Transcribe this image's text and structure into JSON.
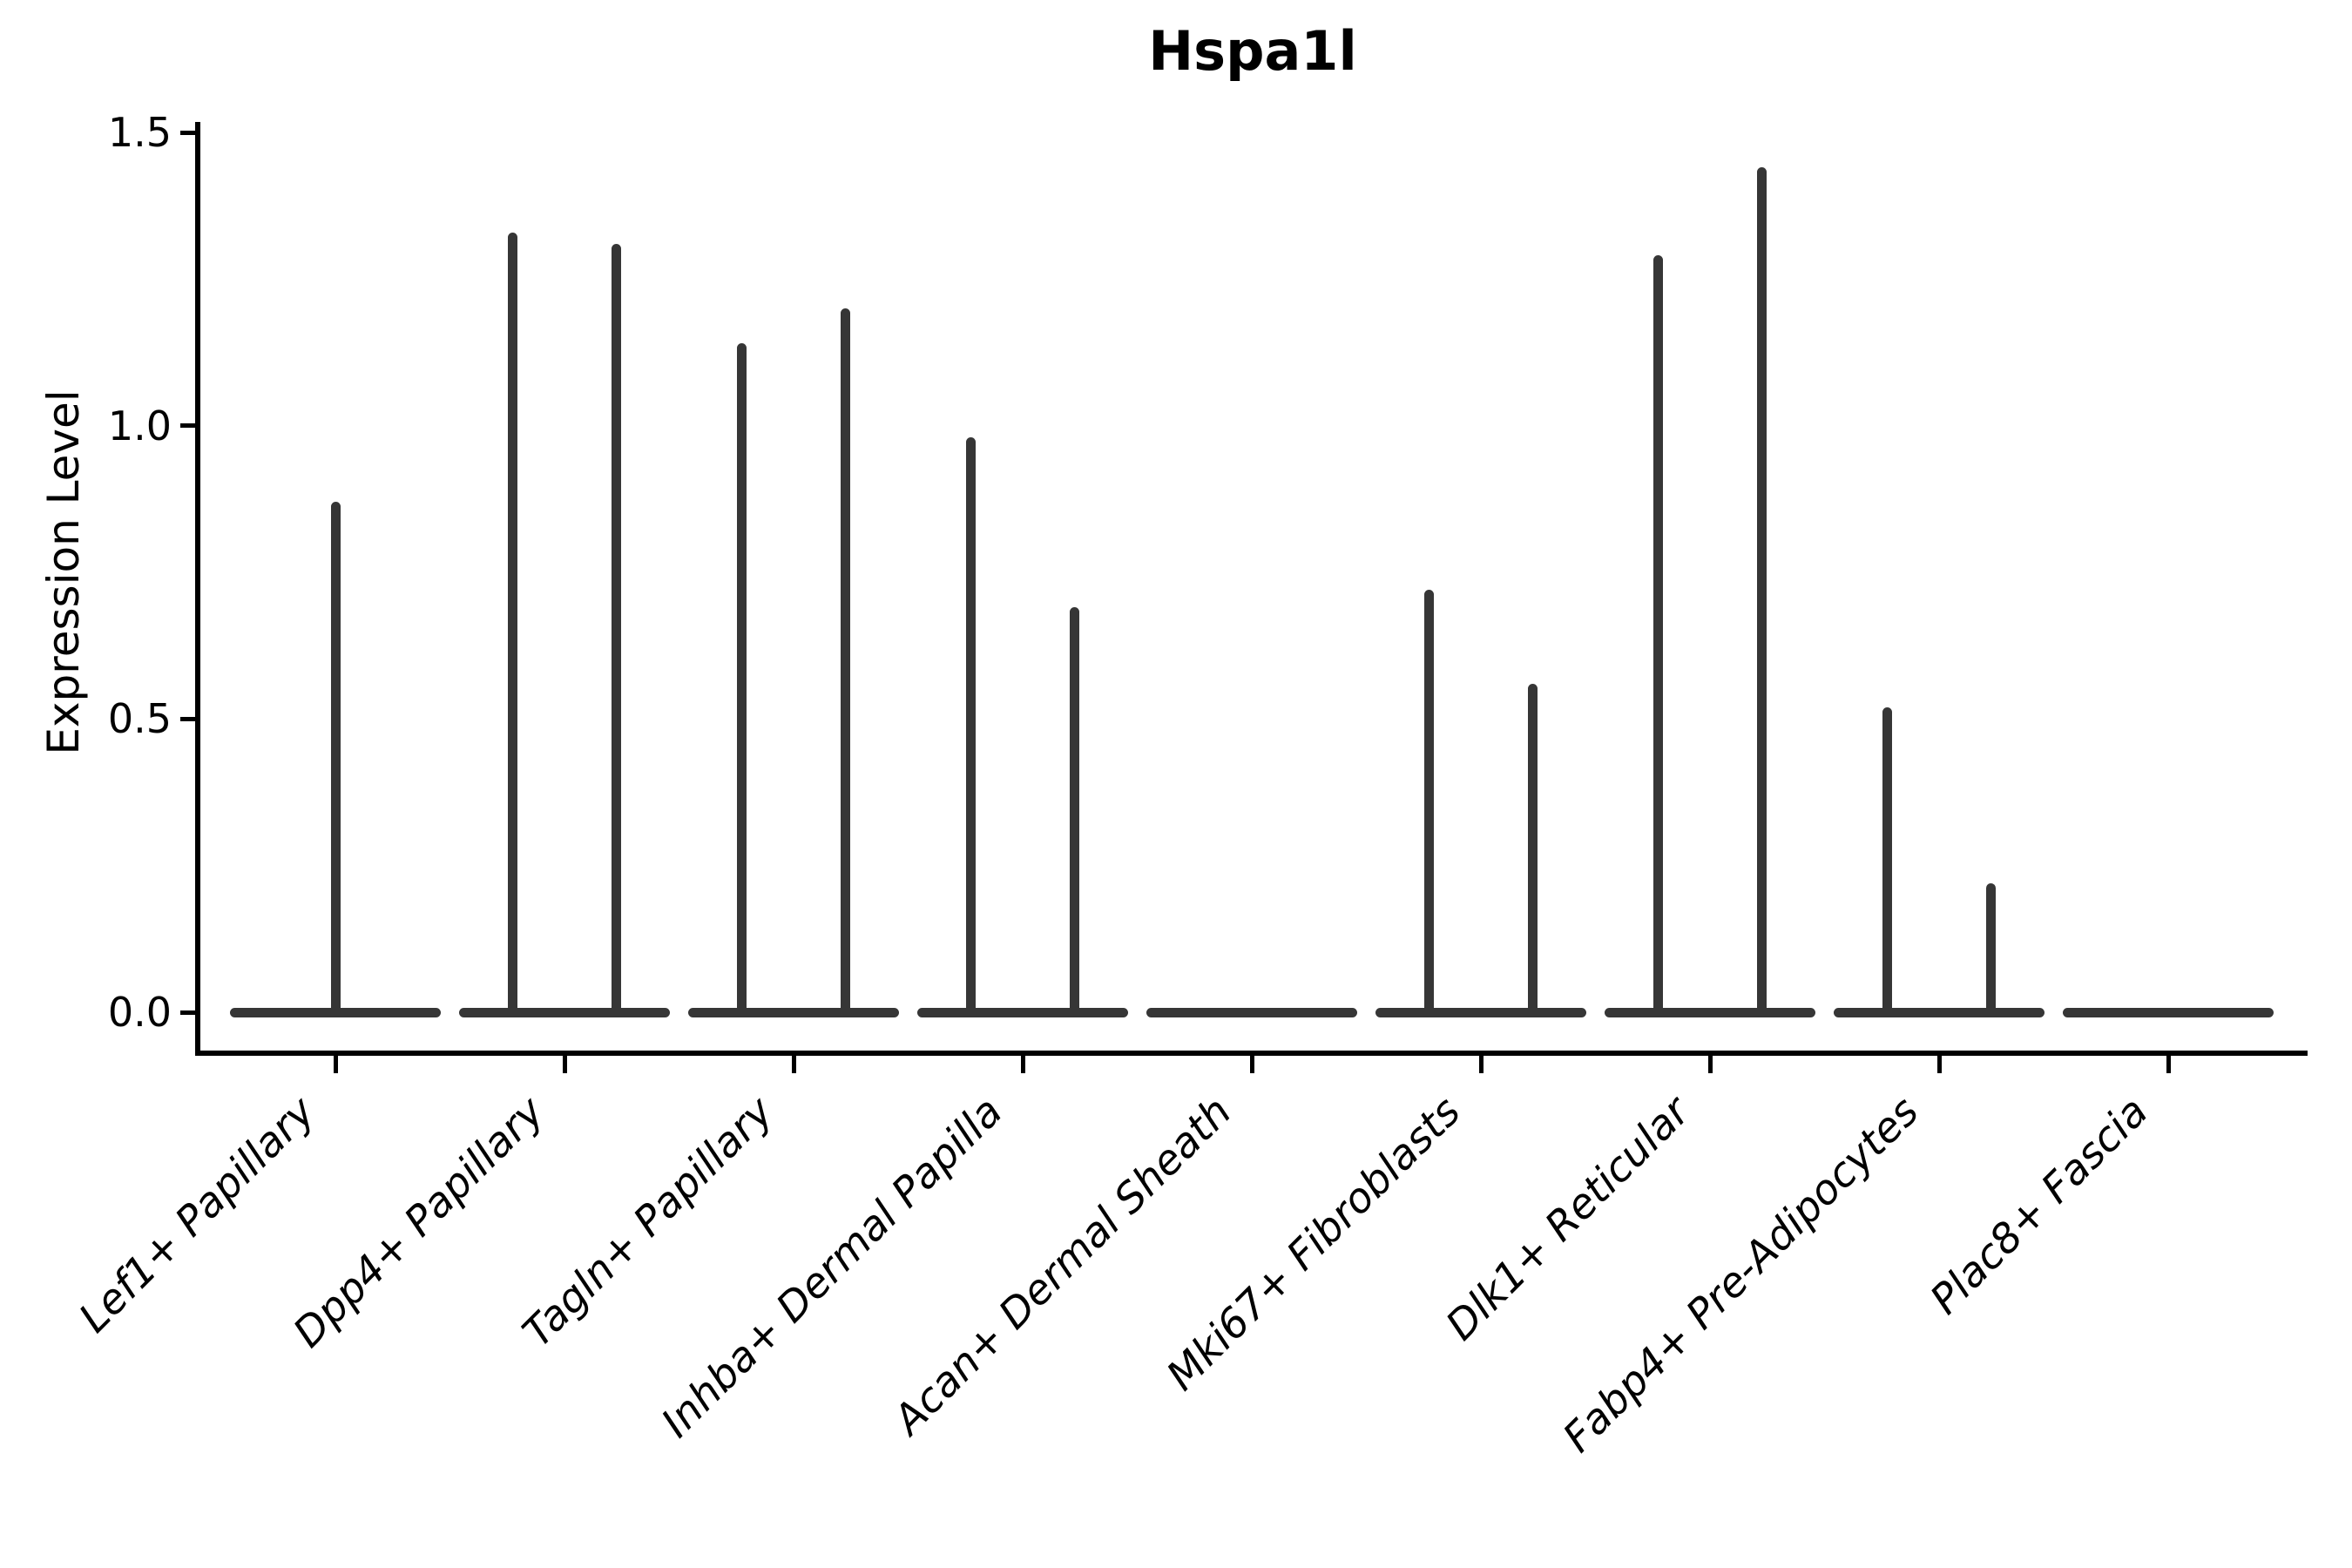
{
  "chart_data": {
    "type": "violin",
    "title": "Hspa1l",
    "ylabel": "Expression Level",
    "xlabel": "",
    "ylim": [
      0,
      1.5
    ],
    "grid": false,
    "legend": "none",
    "ytick_labels": [
      "0.0",
      "0.5",
      "1.0",
      "1.5"
    ],
    "ytick_values": [
      0,
      0.5,
      1,
      1.5
    ],
    "baseline_value": 0.0,
    "description": "Each category shows a flat violin base at expression 0 with thin density spikes rising to the max expression; two split violins per category where present.",
    "categories": [
      {
        "label": "Lef1+ Papillary",
        "violins": [
          {
            "position": "center",
            "max": 0.87
          }
        ]
      },
      {
        "label": "Dpp4+ Papillary",
        "violins": [
          {
            "position": "left",
            "max": 1.33
          },
          {
            "position": "right",
            "max": 1.31
          }
        ]
      },
      {
        "label": "Tagln+ Papillary",
        "violins": [
          {
            "position": "left",
            "max": 1.14
          },
          {
            "position": "right",
            "max": 1.2
          }
        ]
      },
      {
        "label": "Inhba+ Dermal Papilla",
        "violins": [
          {
            "position": "left",
            "max": 0.98
          },
          {
            "position": "right",
            "max": 0.69
          }
        ]
      },
      {
        "label": "Acan+ Dermal Sheath",
        "violins": []
      },
      {
        "label": "Mki67+ Fibroblasts",
        "violins": [
          {
            "position": "left",
            "max": 0.72
          },
          {
            "position": "right",
            "max": 0.56
          }
        ]
      },
      {
        "label": "Dlk1+ Reticular",
        "violins": [
          {
            "position": "left",
            "max": 1.29
          },
          {
            "position": "right",
            "max": 1.44
          }
        ]
      },
      {
        "label": "Fabp4+ Pre-Adipocytes",
        "violins": [
          {
            "position": "left",
            "max": 0.52
          },
          {
            "position": "right",
            "max": 0.22
          }
        ]
      },
      {
        "label": "Plac8+ Fascia",
        "violins": []
      }
    ],
    "colors": {
      "violin": "#363636",
      "axis": "#000000",
      "background": "#ffffff"
    }
  }
}
